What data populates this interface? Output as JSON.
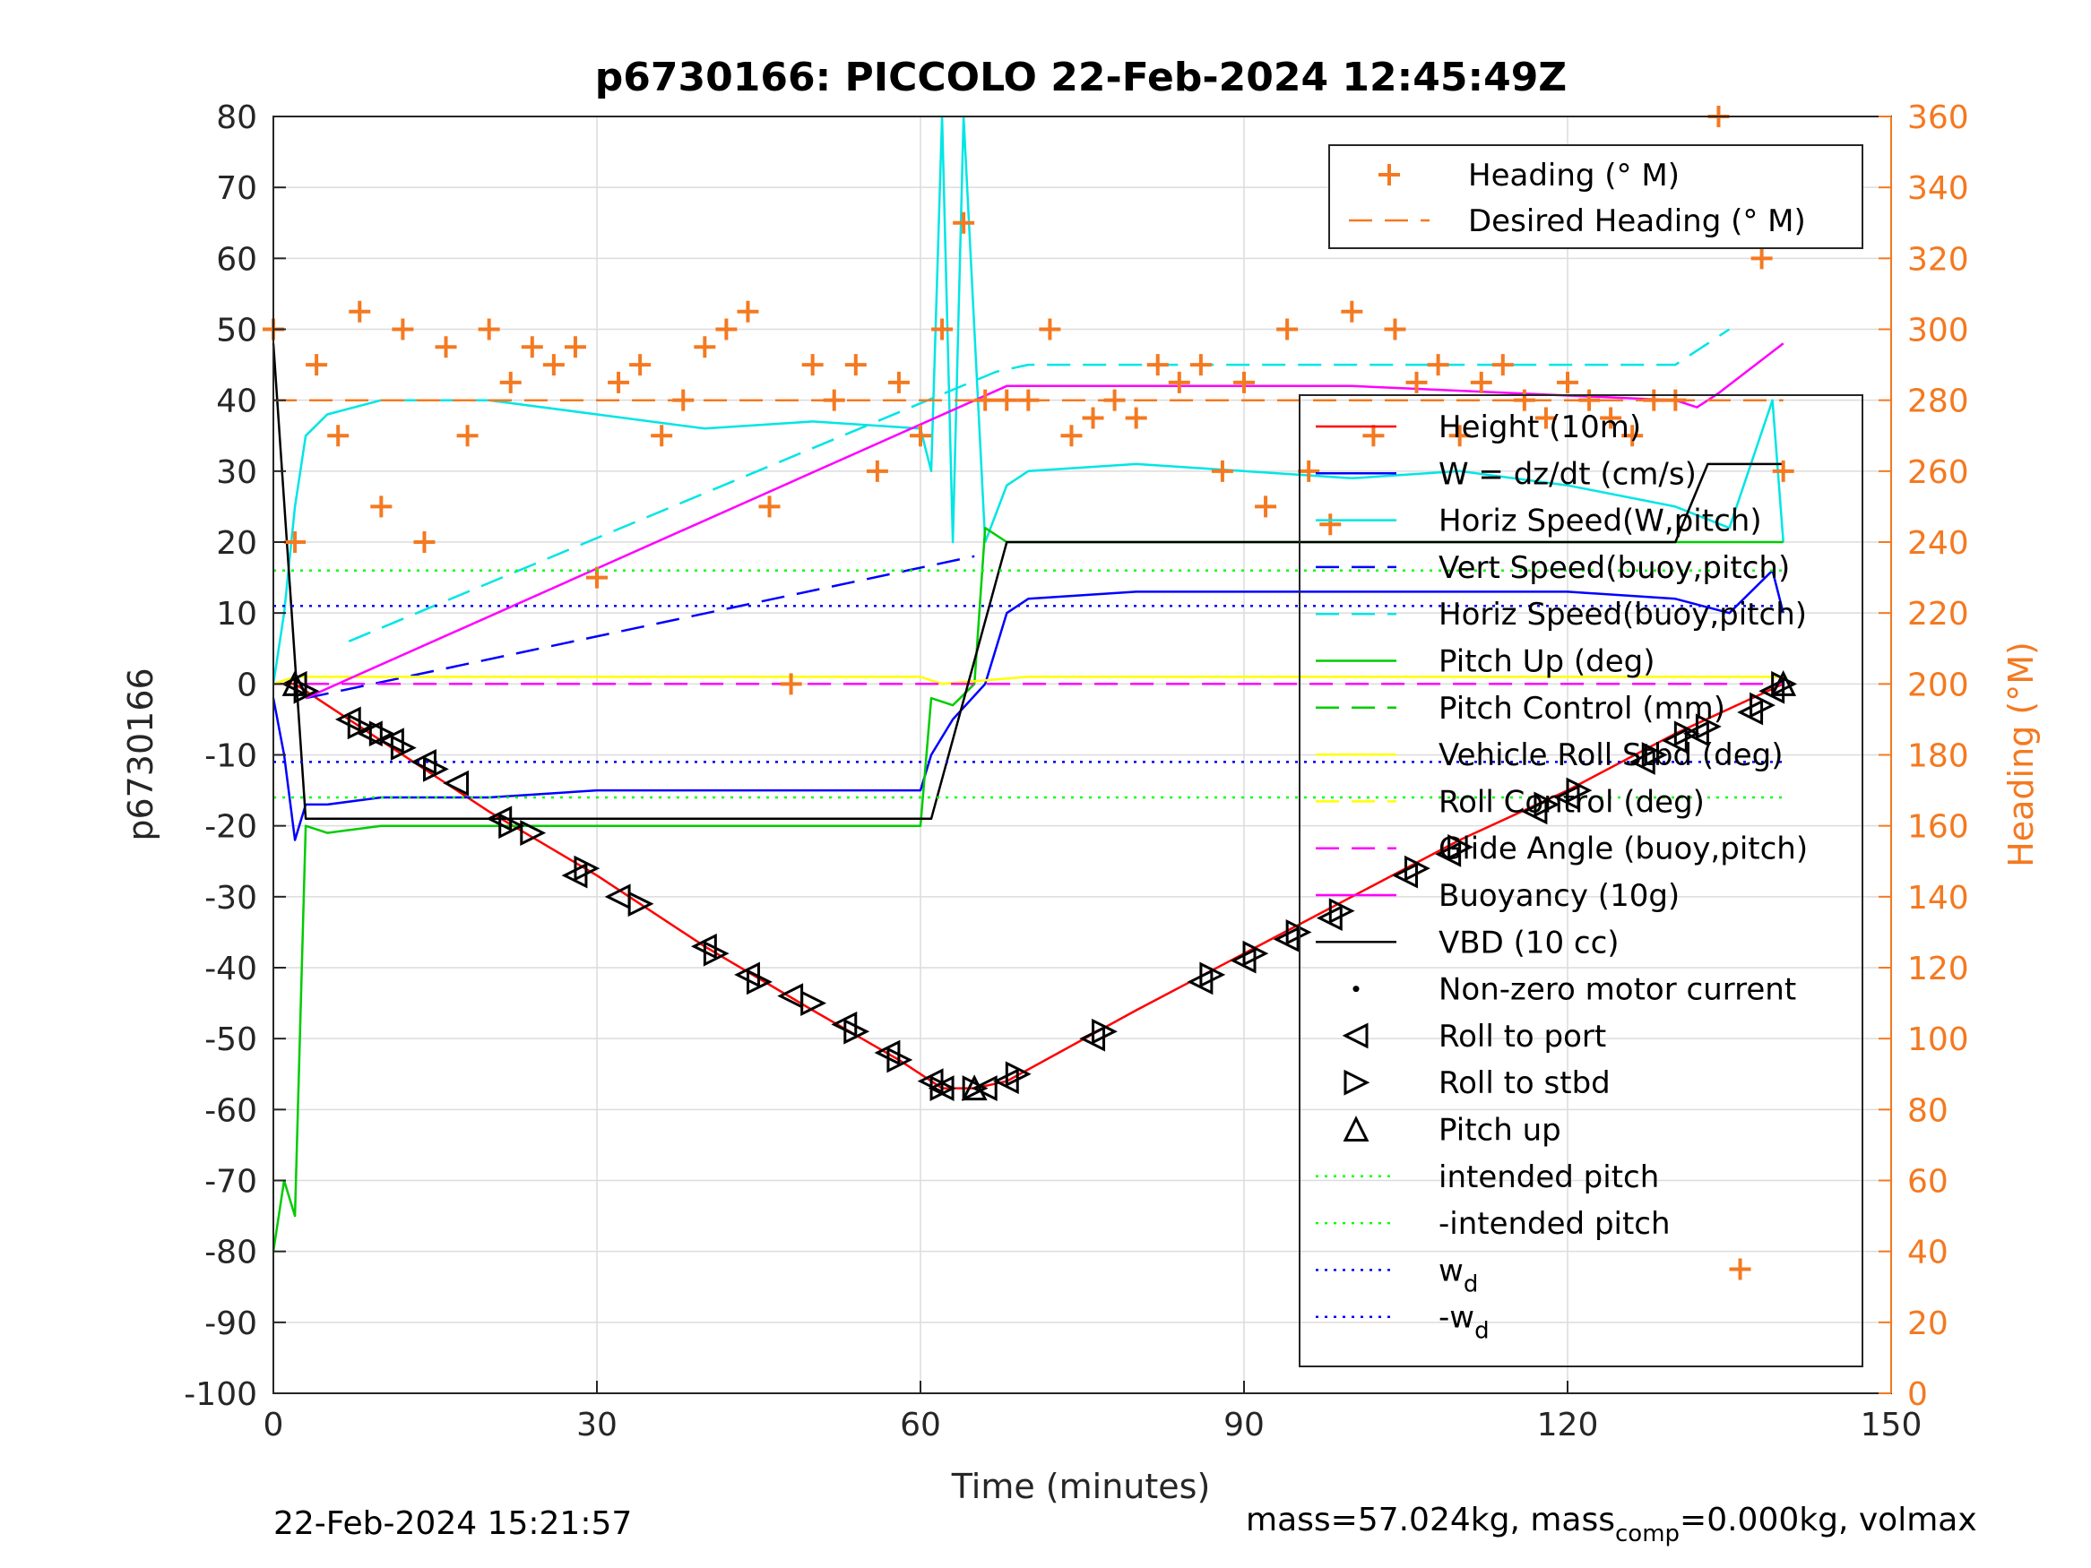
{
  "chart_data": {
    "type": "line",
    "title": "p6730166: PICCOLO 22-Feb-2024 12:45:49Z",
    "xlabel": "Time (minutes)",
    "ylabel": "p6730166",
    "ylabel_right": "Heading (°M)",
    "xlim": [
      0,
      150
    ],
    "ylim": [
      -100,
      80
    ],
    "ylim_right": [
      0,
      360
    ],
    "x_ticks": [
      0,
      30,
      60,
      90,
      120,
      150
    ],
    "y_ticks": [
      -100,
      -90,
      -80,
      -70,
      -60,
      -50,
      -40,
      -30,
      -20,
      -10,
      0,
      10,
      20,
      30,
      40,
      50,
      60,
      70,
      80
    ],
    "y_ticks_right": [
      0,
      20,
      40,
      60,
      80,
      100,
      120,
      140,
      160,
      180,
      200,
      220,
      240,
      260,
      280,
      300,
      320,
      340,
      360
    ],
    "grid": true,
    "legend_top": {
      "placement": "top-right",
      "entries": [
        {
          "label": "Heading (° M)",
          "color": "#F47920",
          "style": "plus"
        },
        {
          "label": "Desired Heading (° M)",
          "color": "#F47920",
          "style": "dashed"
        }
      ]
    },
    "legend_main": {
      "placement": "right",
      "entries": [
        {
          "label": "Height (10m)",
          "color": "#FF0000",
          "style": "solid"
        },
        {
          "label": "W = dz/dt (cm/s)",
          "color": "#0000FF",
          "style": "solid"
        },
        {
          "label": "Horiz Speed(W,pitch)",
          "color": "#00E5E5",
          "style": "solid"
        },
        {
          "label": "Vert Speed(buoy,pitch)",
          "color": "#0000FF",
          "style": "dashed"
        },
        {
          "label": "Horiz Speed(buoy,pitch)",
          "color": "#00E5E5",
          "style": "dashed"
        },
        {
          "label": "Pitch Up (deg)",
          "color": "#00CC00",
          "style": "solid"
        },
        {
          "label": "Pitch Control (mm)",
          "color": "#00CC00",
          "style": "dashed"
        },
        {
          "label": "Vehicle Roll Stbd (deg)",
          "color": "#FFFF00",
          "style": "solid"
        },
        {
          "label": "Roll Control (deg)",
          "color": "#FFFF00",
          "style": "dashed"
        },
        {
          "label": "Glide Angle (buoy,pitch)",
          "color": "#FF00FF",
          "style": "dashed"
        },
        {
          "label": "Buoyancy (10g)",
          "color": "#FF00FF",
          "style": "solid"
        },
        {
          "label": "VBD (10 cc)",
          "color": "#000000",
          "style": "solid"
        },
        {
          "label": "Non-zero motor current",
          "color": "#000000",
          "style": "dot"
        },
        {
          "label": "Roll to port",
          "color": "#000000",
          "style": "tri-left"
        },
        {
          "label": "Roll to stbd",
          "color": "#000000",
          "style": "tri-right"
        },
        {
          "label": "Pitch up",
          "color": "#000000",
          "style": "tri-up"
        },
        {
          "label": "intended pitch",
          "color": "#00FF00",
          "style": "dotted"
        },
        {
          "label": "-intended pitch",
          "color": "#00FF00",
          "style": "dotted"
        },
        {
          "label": "w",
          "sub": "d",
          "color": "#0000FF",
          "style": "dotted"
        },
        {
          "label": "-w",
          "sub": "d",
          "color": "#0000FF",
          "style": "dotted"
        }
      ]
    },
    "series": [
      {
        "name": "Height (10m)",
        "color": "#FF0000",
        "x": [
          0,
          2,
          10,
          20,
          30,
          40,
          50,
          58,
          62,
          65,
          68,
          80,
          90,
          100,
          110,
          120,
          130,
          140
        ],
        "y": [
          0,
          0,
          -8,
          -18,
          -27,
          -37,
          -46,
          -53,
          -57,
          -57,
          -56,
          -46,
          -38,
          -30,
          -22,
          -15,
          -7,
          0
        ]
      },
      {
        "name": "W = dz/dt (cm/s)",
        "color": "#0000FF",
        "x": [
          0,
          1,
          2,
          3,
          5,
          10,
          20,
          30,
          40,
          50,
          60,
          61,
          63,
          66,
          68,
          70,
          80,
          90,
          100,
          110,
          120,
          130,
          135,
          139,
          140
        ],
        "y": [
          -2,
          -10,
          -22,
          -17,
          -17,
          -16,
          -16,
          -15,
          -15,
          -15,
          -15,
          -10,
          -5,
          0,
          10,
          12,
          13,
          13,
          13,
          13,
          13,
          12,
          10,
          16,
          10
        ]
      },
      {
        "name": "Horiz Speed(W,pitch)",
        "color": "#00E5E5",
        "x": [
          0,
          1,
          2,
          3,
          5,
          10,
          20,
          30,
          40,
          50,
          60,
          61,
          62,
          63,
          64,
          66,
          68,
          70,
          80,
          90,
          100,
          110,
          120,
          130,
          135,
          139,
          140
        ],
        "y": [
          0,
          10,
          25,
          35,
          38,
          40,
          40,
          38,
          36,
          37,
          36,
          30,
          80,
          20,
          80,
          20,
          28,
          30,
          31,
          30,
          29,
          30,
          28,
          25,
          22,
          40,
          20
        ]
      },
      {
        "name": "Vert Speed(buoy,pitch)",
        "color": "#0000FF",
        "style": "dashed",
        "x": [
          3,
          65
        ],
        "y": [
          -2,
          18
        ]
      },
      {
        "name": "Horiz Speed(buoy,pitch)",
        "color": "#00E5E5",
        "style": "dashed",
        "x": [
          7,
          67,
          70,
          130,
          135
        ],
        "y": [
          6,
          44,
          45,
          45,
          50
        ]
      },
      {
        "name": "Pitch Up (deg)",
        "color": "#00CC00",
        "x": [
          0,
          1,
          2,
          3,
          5,
          10,
          20,
          40,
          60,
          61,
          63,
          65,
          66,
          68,
          70,
          100,
          130,
          140
        ],
        "y": [
          -80,
          -70,
          -75,
          -20,
          -21,
          -20,
          -20,
          -20,
          -20,
          -2,
          -3,
          0,
          22,
          20,
          20,
          20,
          20,
          20
        ]
      },
      {
        "name": "Vehicle Roll Stbd (deg)",
        "color": "#FFFF00",
        "x": [
          0,
          2,
          5,
          20,
          40,
          60,
          62,
          70,
          100,
          130,
          140
        ],
        "y": [
          0,
          1,
          1,
          1,
          1,
          1,
          0,
          1,
          1,
          1,
          1
        ]
      },
      {
        "name": "Glide Angle (buoy,pitch)",
        "color": "#FF00FF",
        "style": "dashed",
        "x": [
          3,
          140
        ],
        "y": [
          0,
          0
        ]
      },
      {
        "name": "Buoyancy (10g)",
        "color": "#FF00FF",
        "x": [
          3,
          68,
          100,
          130,
          132,
          134,
          140
        ],
        "y": [
          -2,
          42,
          42,
          40,
          39,
          41,
          48
        ]
      },
      {
        "name": "VBD (10 cc)",
        "color": "#000000",
        "x": [
          0,
          3,
          61,
          68,
          130,
          133,
          140
        ],
        "y": [
          48,
          -19,
          -19,
          20,
          20,
          31,
          31
        ]
      },
      {
        "name": "Heading (° M)",
        "axis": "right",
        "color": "#F47920",
        "style": "plus",
        "x": [
          0,
          2,
          4,
          6,
          8,
          10,
          12,
          14,
          16,
          18,
          20,
          22,
          24,
          26,
          28,
          30,
          32,
          34,
          36,
          38,
          40,
          42,
          44,
          46,
          48,
          50,
          52,
          54,
          56,
          58,
          60,
          62,
          64,
          66,
          68,
          70,
          72,
          74,
          76,
          78,
          80,
          82,
          84,
          86,
          88,
          90,
          92,
          94,
          96,
          98,
          100,
          102,
          104,
          106,
          108,
          110,
          112,
          114,
          116,
          118,
          120,
          122,
          124,
          126,
          128,
          130,
          132,
          134,
          136,
          138,
          140
        ],
        "y": [
          300,
          240,
          290,
          270,
          305,
          250,
          300,
          240,
          295,
          270,
          300,
          285,
          295,
          290,
          295,
          230,
          285,
          290,
          270,
          280,
          295,
          300,
          305,
          250,
          200,
          290,
          280,
          290,
          260,
          285,
          270,
          300,
          330,
          280,
          280,
          280,
          300,
          270,
          275,
          280,
          275,
          290,
          285,
          290,
          260,
          285,
          250,
          300,
          260,
          245,
          305,
          270,
          300,
          285,
          290,
          270,
          285,
          290,
          280,
          275,
          285,
          280,
          275,
          270,
          280,
          280,
          330,
          360,
          35,
          320,
          260
        ]
      },
      {
        "name": "Desired Heading (° M)",
        "axis": "right",
        "color": "#F47920",
        "style": "dashed",
        "x": [
          0,
          140
        ],
        "y": [
          280,
          280
        ]
      },
      {
        "name": "intended pitch",
        "color": "#00FF00",
        "style": "dotted",
        "x": [
          0,
          140
        ],
        "y": [
          16,
          16
        ]
      },
      {
        "name": "-intended pitch",
        "color": "#00FF00",
        "style": "dotted",
        "x": [
          0,
          140
        ],
        "y": [
          -16,
          -16
        ]
      },
      {
        "name": "w_d",
        "color": "#0000FF",
        "style": "dotted",
        "x": [
          0,
          140
        ],
        "y": [
          11,
          11
        ]
      },
      {
        "name": "-w_d",
        "color": "#0000FF",
        "style": "dotted",
        "x": [
          0,
          140
        ],
        "y": [
          -11,
          -11
        ]
      },
      {
        "name": "Roll to port",
        "color": "#000000",
        "style": "tri-left",
        "x": [
          2,
          7,
          9,
          11,
          14,
          17,
          21,
          28,
          32,
          40,
          44,
          48,
          53,
          57,
          61,
          62,
          66,
          68,
          76,
          86,
          90,
          94,
          98,
          105,
          109,
          117,
          120,
          127,
          130,
          132,
          137,
          139
        ],
        "y": [
          0,
          -5,
          -7,
          -8,
          -11,
          -14,
          -19,
          -27,
          -30,
          -37,
          -41,
          -44,
          -48,
          -52,
          -56,
          -57,
          -57,
          -56,
          -50,
          -42,
          -39,
          -36,
          -33,
          -27,
          -24,
          -18,
          -16,
          -11,
          -8,
          -7,
          -4,
          -1
        ]
      },
      {
        "name": "Roll to stbd",
        "color": "#000000",
        "style": "tri-right",
        "x": [
          3,
          8,
          10,
          12,
          15,
          22,
          24,
          29,
          34,
          41,
          45,
          50,
          54,
          58,
          62,
          65,
          69,
          77,
          87,
          91,
          95,
          99,
          106,
          110,
          118,
          121,
          128,
          131,
          133,
          138,
          140
        ],
        "y": [
          -1,
          -6,
          -7,
          -9,
          -12,
          -20,
          -21,
          -26,
          -31,
          -38,
          -42,
          -45,
          -49,
          -53,
          -57,
          -57,
          -55,
          -49,
          -41,
          -38,
          -35,
          -32,
          -26,
          -23,
          -17,
          -15,
          -10,
          -7,
          -6,
          -3,
          0
        ]
      },
      {
        "name": "Pitch up",
        "color": "#000000",
        "style": "tri-up",
        "x": [
          2,
          65,
          140
        ],
        "y": [
          0,
          -57,
          0
        ]
      }
    ]
  },
  "footer": {
    "timestamp": "22-Feb-2024 15:21:57",
    "mass_text_a": "mass=57.024kg, mass",
    "mass_sub": "comp",
    "mass_text_b": "=0.000kg, volmax"
  }
}
